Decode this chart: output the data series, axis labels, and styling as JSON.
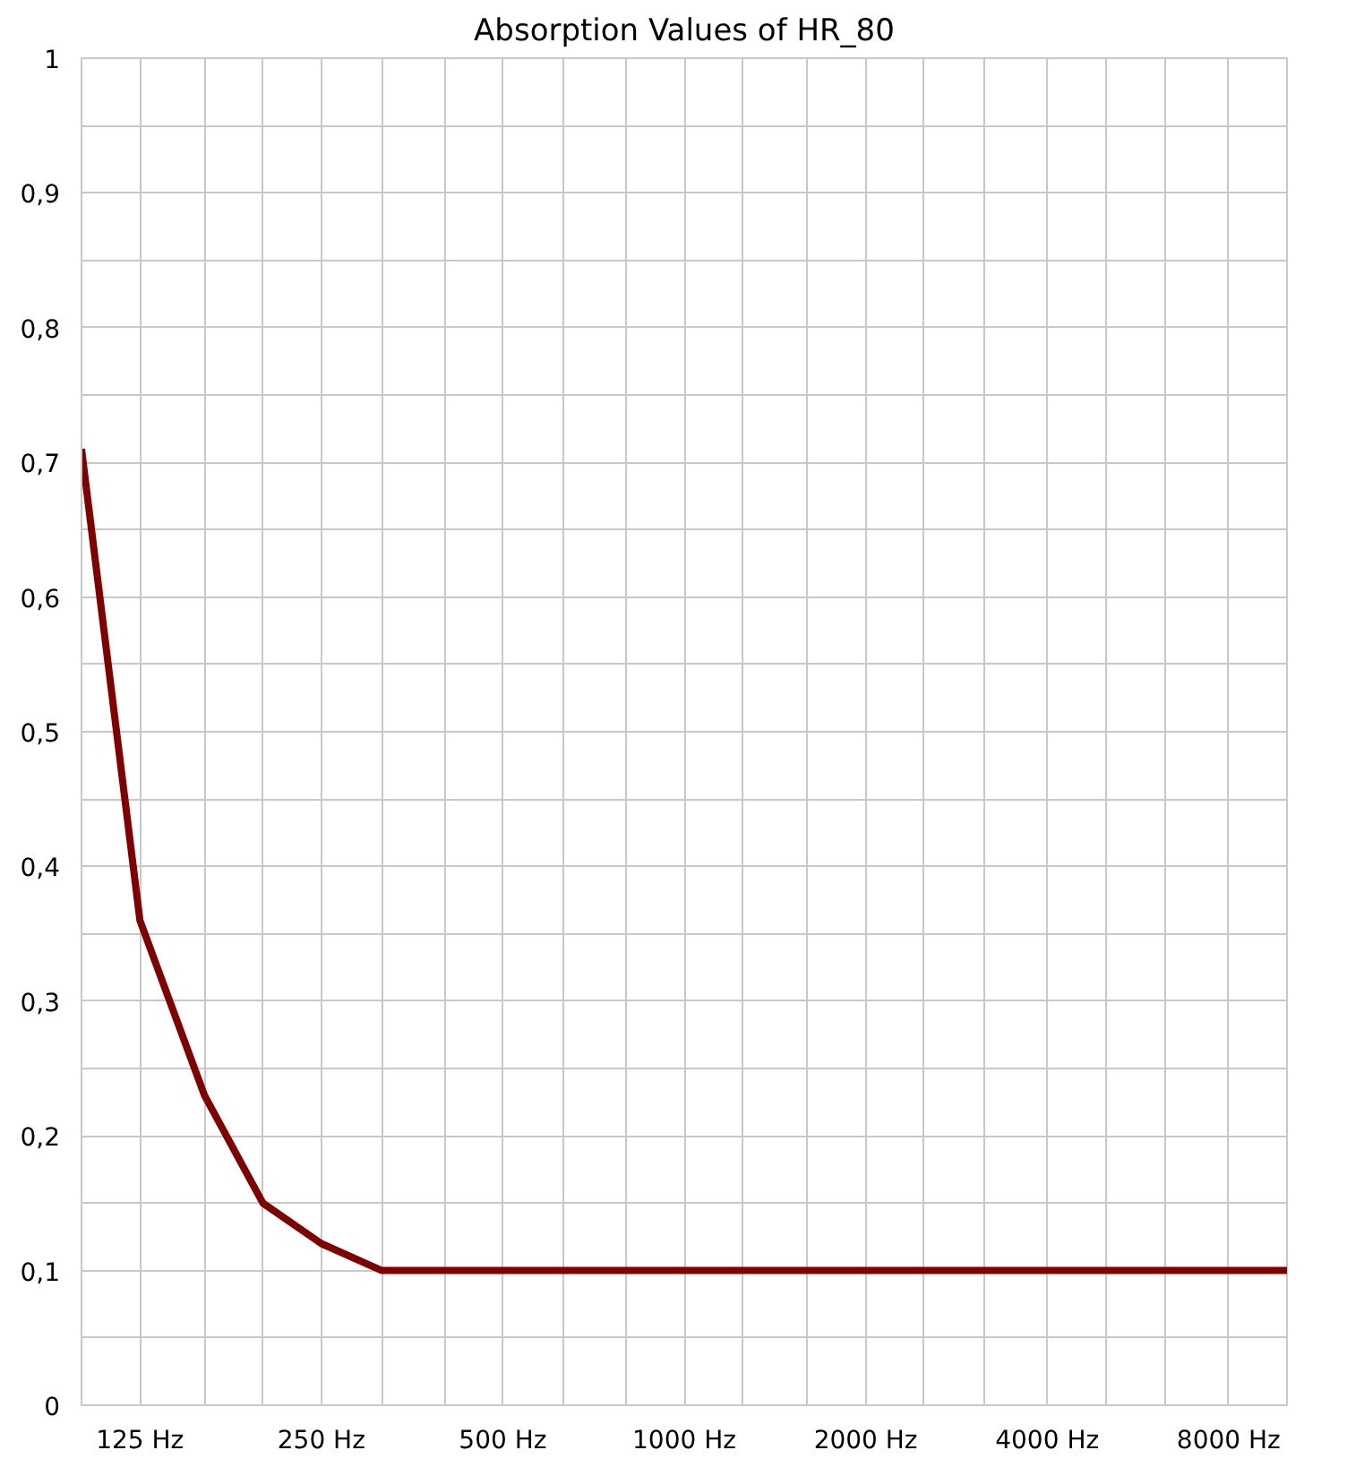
{
  "chart_data": {
    "type": "line",
    "title": "Absorption Values of HR_80",
    "x": [
      100,
      125,
      160,
      200,
      250,
      315,
      400,
      500,
      630,
      800,
      1000,
      1250,
      1600,
      2000,
      2500,
      3150,
      4000,
      5000,
      6300,
      8000,
      10000
    ],
    "series": [
      {
        "color": "#800000",
        "values": [
          0.71,
          0.36,
          0.23,
          0.15,
          0.12,
          0.1,
          0.1,
          0.1,
          0.1,
          0.1,
          0.1,
          0.1,
          0.1,
          0.1,
          0.1,
          0.1,
          0.1,
          0.1,
          0.1,
          0.1,
          0.1
        ]
      }
    ],
    "log": "x",
    "xlim": [
      100,
      10000
    ],
    "xticks": [
      {
        "value": 100,
        "label": null
      },
      {
        "value": 125,
        "label": "125 Hz"
      },
      {
        "value": 160,
        "label": null
      },
      {
        "value": 200,
        "label": null
      },
      {
        "value": 250,
        "label": "250 Hz"
      },
      {
        "value": 315,
        "label": null
      },
      {
        "value": 400,
        "label": null
      },
      {
        "value": 500,
        "label": "500 Hz"
      },
      {
        "value": 630,
        "label": null
      },
      {
        "value": 800,
        "label": null
      },
      {
        "value": 1000,
        "label": "1000 Hz"
      },
      {
        "value": 1250,
        "label": null
      },
      {
        "value": 1600,
        "label": null
      },
      {
        "value": 2000,
        "label": "2000 Hz"
      },
      {
        "value": 2500,
        "label": null
      },
      {
        "value": 3150,
        "label": null
      },
      {
        "value": 4000,
        "label": "4000 Hz"
      },
      {
        "value": 5000,
        "label": null
      },
      {
        "value": 6300,
        "label": null
      },
      {
        "value": 8000,
        "label": "8000 Hz"
      },
      {
        "value": 10000,
        "label": null
      }
    ],
    "ylim": [
      0,
      1
    ],
    "yticks": [
      0,
      {
        "value": 0.05,
        "label": null
      },
      {
        "value": 0.1,
        "label": "0,1"
      },
      {
        "value": 0.15,
        "label": null
      },
      {
        "value": 0.2,
        "label": "0,2"
      },
      {
        "value": 0.25,
        "label": null
      },
      {
        "value": 0.3,
        "label": "0,3"
      },
      {
        "value": 0.35,
        "label": null
      },
      {
        "value": 0.4,
        "label": "0,4"
      },
      {
        "value": 0.45,
        "label": null
      },
      {
        "value": 0.5,
        "label": "0,5"
      },
      {
        "value": 0.55,
        "label": null
      },
      {
        "value": 0.6,
        "label": "0,6"
      },
      {
        "value": 0.65,
        "label": null
      },
      {
        "value": 0.7,
        "label": "0,7"
      },
      {
        "value": 0.75,
        "label": null
      },
      {
        "value": 0.8,
        "label": "0,8"
      },
      {
        "value": 0.85,
        "label": null
      },
      {
        "value": 0.9,
        "label": "0,9"
      },
      {
        "value": 0.95,
        "label": null
      },
      1
    ],
    "grid": true,
    "line_style": "solid"
  }
}
